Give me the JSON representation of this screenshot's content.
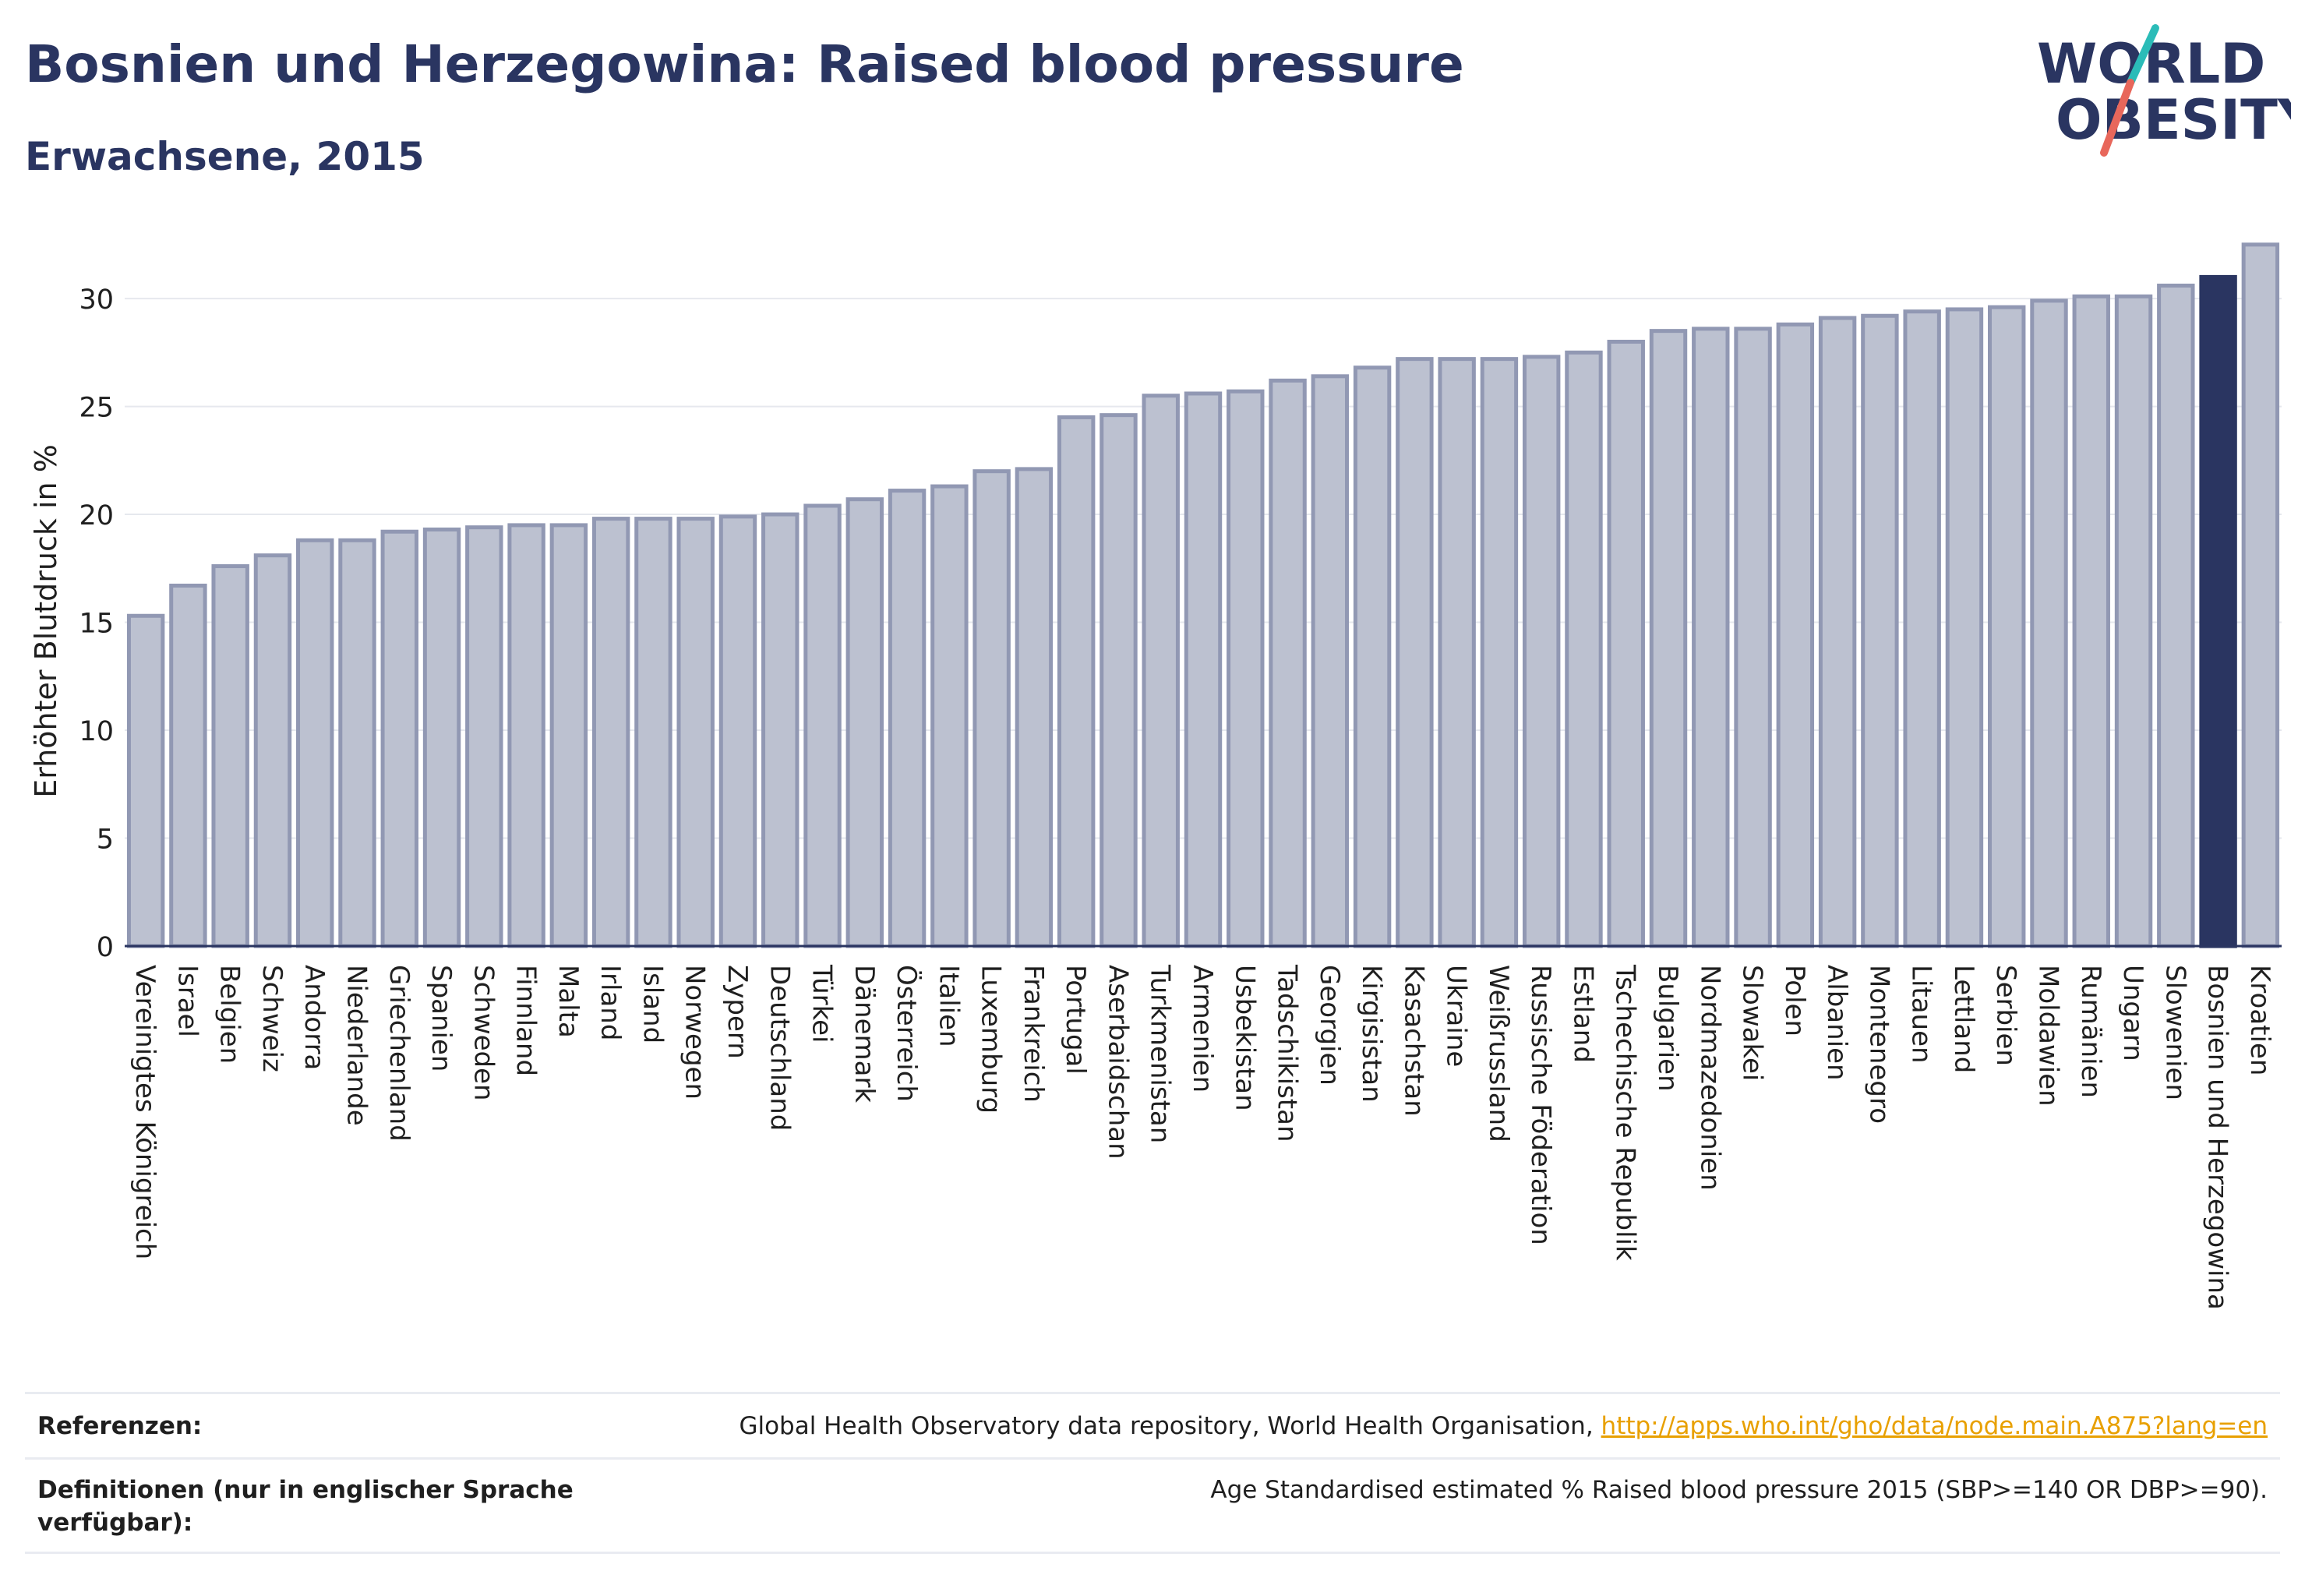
{
  "header": {
    "title": "Bosnien und Herzegowina: Raised blood pressure",
    "subtitle": "Erwachsene, 2015"
  },
  "logo": {
    "line1": "WORLD",
    "line2": "OBESITY",
    "colors": {
      "text": "#2a3561",
      "slash_teal": "#2bbcb8",
      "slash_coral": "#e8675b"
    }
  },
  "chart_data": {
    "type": "bar",
    "ylabel": "Erhöhter Blutdruck in %",
    "ylim": [
      0,
      33
    ],
    "yticks": [
      0,
      5,
      10,
      15,
      20,
      25,
      30
    ],
    "grid": true,
    "highlight": "Bosnien und Herzegowina",
    "colors": {
      "bar": "#bcc1d0",
      "bar_border": "#9198b3",
      "highlight": "#2a3561"
    },
    "categories": [
      "Vereinigtes Königreich",
      "Israel",
      "Belgien",
      "Schweiz",
      "Andorra",
      "Niederlande",
      "Griechenland",
      "Spanien",
      "Schweden",
      "Finnland",
      "Malta",
      "Irland",
      "Island",
      "Norwegen",
      "Zypern",
      "Deutschland",
      "Türkei",
      "Dänemark",
      "Österreich",
      "Italien",
      "Luxemburg",
      "Frankreich",
      "Portugal",
      "Aserbaidschan",
      "Turkmenistan",
      "Armenien",
      "Usbekistan",
      "Tadschikistan",
      "Georgien",
      "Kirgisistan",
      "Kasachstan",
      "Ukraine",
      "Weißrussland",
      "Russische Föderation",
      "Estland",
      "Tschechische Republik",
      "Bulgarien",
      "Nordmazedonien",
      "Slowakei",
      "Polen",
      "Albanien",
      "Montenegro",
      "Litauen",
      "Lettland",
      "Serbien",
      "Moldawien",
      "Rumänien",
      "Ungarn",
      "Slowenien",
      "Bosnien und Herzegowina",
      "Kroatien"
    ],
    "values": [
      15.3,
      16.7,
      17.6,
      18.1,
      18.8,
      18.8,
      19.2,
      19.3,
      19.4,
      19.5,
      19.5,
      19.8,
      19.8,
      19.8,
      19.9,
      20.0,
      20.4,
      20.7,
      21.1,
      21.3,
      22.0,
      22.1,
      24.5,
      24.6,
      25.5,
      25.6,
      25.7,
      26.2,
      26.4,
      26.8,
      27.2,
      27.2,
      27.2,
      27.3,
      27.5,
      28.0,
      28.5,
      28.6,
      28.6,
      28.8,
      29.1,
      29.2,
      29.4,
      29.5,
      29.6,
      29.9,
      30.1,
      30.1,
      30.6,
      31.0,
      32.5
    ]
  },
  "footer": {
    "references_label": "Referenzen:",
    "references_text": "Global Health Observatory data repository, World Health Organisation,",
    "references_link": "http://apps.who.int/gho/data/node.main.A875?lang=en",
    "definitions_label": "Definitionen (nur in englischer Sprache verfügbar):",
    "definitions_text": "Age Standardised estimated % Raised blood pressure 2015 (SBP>=140 OR DBP>=90)."
  }
}
